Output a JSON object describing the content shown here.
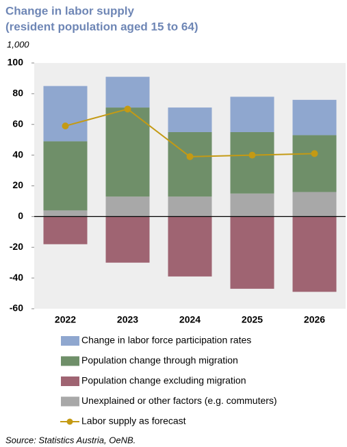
{
  "chart_data": {
    "type": "bar",
    "title": "Change in labor supply",
    "subtitle": "(resident population aged 15 to 64)",
    "y_label": "1,000",
    "source": "Source: Statistics Austria, OeNB.",
    "categories": [
      "2022",
      "2023",
      "2024",
      "2025",
      "2026"
    ],
    "ylim": [
      -60,
      100
    ],
    "yticks": [
      -60,
      -40,
      -20,
      0,
      20,
      40,
      60,
      80,
      100
    ],
    "stacked": true,
    "series": [
      {
        "name": "Change in labor force participation rates",
        "color": "#8fa7cf",
        "values": [
          36,
          20,
          16,
          23,
          23
        ]
      },
      {
        "name": "Population change through migration",
        "color": "#6f8f69",
        "values": [
          45,
          58,
          42,
          40,
          37
        ]
      },
      {
        "name": "Population change excluding migration",
        "color": "#9f6472",
        "values": [
          -18,
          -30,
          -39,
          -47,
          -49
        ]
      },
      {
        "name": "Unexplained or other factors (e.g. commuters)",
        "color": "#a8a8a8",
        "values": [
          4,
          13,
          13,
          15,
          16
        ]
      },
      {
        "name": "Labor supply as forecast",
        "color": "#c49a14",
        "type": "line",
        "values": [
          59,
          70,
          39,
          40,
          41
        ]
      }
    ]
  }
}
